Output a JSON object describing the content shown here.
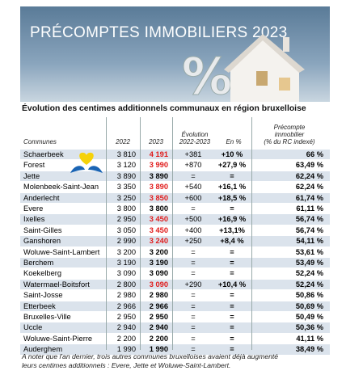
{
  "header": {
    "title": "PRÉCOMPTES IMMOBILIERS 2023"
  },
  "table": {
    "subtitle": "Évolution des centimes additionnels communaux en région bruxelloise",
    "columns": [
      [
        "Communes"
      ],
      [
        "2022"
      ],
      [
        "2023"
      ],
      [
        "Évolution",
        "2022-2023"
      ],
      [
        "En %"
      ],
      [
        "Précompte",
        "immobilier",
        "(% du RC indexé)"
      ]
    ],
    "rows": [
      [
        "Schaerbeek",
        "3 810",
        "4 191",
        "+381",
        "+10 %",
        "66 %"
      ],
      [
        "Forest",
        "3 120",
        "3 990",
        "+870",
        "+27,9 %",
        "63,49 %"
      ],
      [
        "Jette",
        "3 890",
        "3 890",
        "=",
        "=",
        "62,24 %"
      ],
      [
        "Molenbeek-Saint-Jean",
        "3 350",
        "3 890",
        "+540",
        "+16,1 %",
        "62,24 %"
      ],
      [
        "Anderlecht",
        "3 250",
        "3 850",
        "+600",
        "+18,5 %",
        "61,74 %"
      ],
      [
        "Evere",
        "3 800",
        "3 800",
        "=",
        "=",
        "61,11 %"
      ],
      [
        "Ixelles",
        "2 950",
        "3 450",
        "+500",
        "+16,9 %",
        "56,74 %"
      ],
      [
        "Saint-Gilles",
        "3 050",
        "3 450",
        "+400",
        "+13,1%",
        "56,74 %"
      ],
      [
        "Ganshoren",
        "2 990",
        "3 240",
        "+250",
        "+8,4 %",
        "54,11 %"
      ],
      [
        "Woluwe-Saint-Lambert",
        "3 200",
        "3 200",
        "=",
        "=",
        "53,61 %"
      ],
      [
        "Berchem",
        "3 190",
        "3 190",
        "=",
        "=",
        "53,49 %"
      ],
      [
        "Koekelberg",
        "3 090",
        "3 090",
        "=",
        "=",
        "52,24 %"
      ],
      [
        "Watermael-Boitsfort",
        "2 800",
        "3 090",
        "+290",
        "+10,4 %",
        "52,24 %"
      ],
      [
        "Saint-Josse",
        "2 980",
        "2 980",
        "=",
        "=",
        "50,86 %"
      ],
      [
        "Etterbeek",
        "2 966",
        "2 966",
        "=",
        "=",
        "50,69 %"
      ],
      [
        "Bruxelles-Ville",
        "2 950",
        "2 950",
        "=",
        "=",
        "50,49 %"
      ],
      [
        "Uccle",
        "2 940",
        "2 940",
        "=",
        "=",
        "50,36 %"
      ],
      [
        "Woluwe-Saint-Pierre",
        "2 200",
        "2 200",
        "=",
        "=",
        "41,11 %"
      ],
      [
        "Auderghem",
        "1 990",
        "1 990",
        "=",
        "=",
        "38,49 %"
      ]
    ],
    "note": [
      "A noter que l'an dernier, trois autres communes bruxelloises avaient déjà augmenté",
      "leurs centimes additionnels : Evere, Jette et Woluwe-Saint-Lambert."
    ]
  }
}
